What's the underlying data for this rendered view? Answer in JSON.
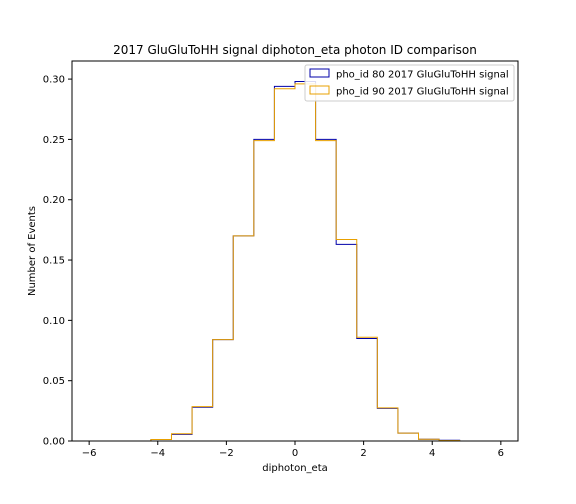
{
  "chart_data": {
    "type": "line",
    "title": "2017 GluGluToHH signal diphoton_eta photon ID comparison",
    "xlabel": "diphoton_eta",
    "ylabel": "Number of Events",
    "xlim": [
      -6.5,
      6.5
    ],
    "ylim": [
      0,
      0.315
    ],
    "xticks": [
      -6,
      -4,
      -2,
      0,
      2,
      4,
      6
    ],
    "yticks": [
      0.0,
      0.05,
      0.1,
      0.15,
      0.2,
      0.25,
      0.3
    ],
    "xtick_labels": [
      "−6",
      "−4",
      "−2",
      "0",
      "2",
      "4",
      "6"
    ],
    "ytick_labels": [
      "0.00",
      "0.05",
      "0.10",
      "0.15",
      "0.20",
      "0.25",
      "0.30"
    ],
    "legend_position": "top-right",
    "grid": false,
    "bin_edges": [
      -6.0,
      -5.4,
      -4.8,
      -4.2,
      -3.6,
      -3.0,
      -2.4,
      -1.8,
      -1.2,
      -0.6,
      0.0,
      0.6,
      1.2,
      1.8,
      2.4,
      3.0,
      3.6,
      4.2,
      4.8,
      5.4,
      6.0
    ],
    "series": [
      {
        "name": "pho_id 80 2017 GluGluToHH signal",
        "color": "#0000aa",
        "values": [
          0,
          0,
          0,
          0.0012,
          0.0055,
          0.028,
          0.084,
          0.17,
          0.25,
          0.294,
          0.298,
          0.25,
          0.163,
          0.085,
          0.027,
          0.0065,
          0.0015,
          0.0006,
          0,
          0
        ]
      },
      {
        "name": "pho_id 90 2017 GluGluToHH signal",
        "color": "#e8a000",
        "values": [
          0,
          0,
          0,
          0.0012,
          0.006,
          0.0285,
          0.084,
          0.17,
          0.249,
          0.292,
          0.296,
          0.249,
          0.167,
          0.086,
          0.0275,
          0.0065,
          0.0015,
          0.0004,
          0,
          0
        ]
      }
    ]
  }
}
